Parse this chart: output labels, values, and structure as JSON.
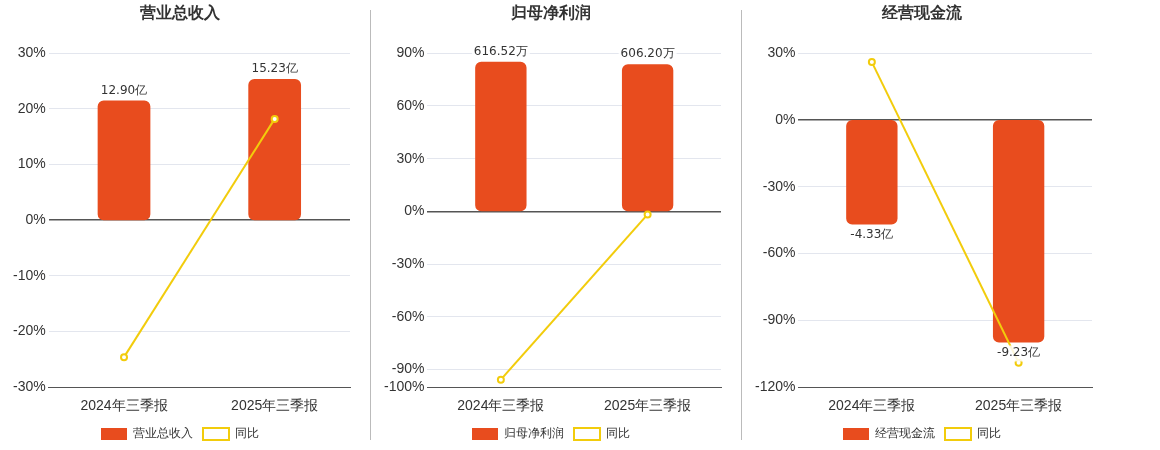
{
  "chart_data": [
    {
      "type": "bar",
      "title": "营业总收入",
      "categories": [
        "2024年三季报",
        "2025年三季报"
      ],
      "series": [
        {
          "name": "营业总收入",
          "axis": "y2",
          "color": "#e84c1e",
          "values": [
            12.9,
            15.23
          ],
          "value_labels": [
            "12.90亿",
            "15.23亿"
          ]
        },
        {
          "name": "同比",
          "type": "line",
          "color": "#f2cc0c",
          "values": [
            -24.6,
            18.2
          ]
        }
      ],
      "ylim": [
        -30,
        30
      ],
      "yticks": [
        {
          "value": -30,
          "label": "-30%"
        },
        {
          "value": -20,
          "label": "-20%"
        },
        {
          "value": -10,
          "label": "-10%"
        },
        {
          "value": 0,
          "label": "0%"
        },
        {
          "value": 10,
          "label": "10%"
        },
        {
          "value": 20,
          "label": "20%"
        },
        {
          "value": 30,
          "label": "30%"
        }
      ],
      "y2lim": [
        -18,
        18
      ],
      "grid": "y",
      "legend": "bottom",
      "marker": "circle"
    },
    {
      "type": "bar",
      "title": "归母净利润",
      "categories": [
        "2024年三季报",
        "2025年三季报"
      ],
      "series": [
        {
          "name": "归母净利润",
          "axis": "y2",
          "color": "#e84c1e",
          "values": [
            616.52,
            606.2
          ],
          "value_labels": [
            "616.52万",
            "606.20万"
          ]
        },
        {
          "name": "同比",
          "type": "line",
          "color": "#f2cc0c",
          "values": [
            -95.7,
            -1.7
          ]
        }
      ],
      "ylim": [
        -100,
        90
      ],
      "yticks": [
        {
          "value": -100,
          "label": "-100%"
        },
        {
          "value": -90,
          "label": "-90%"
        },
        {
          "value": -60,
          "label": "-60%"
        },
        {
          "value": -30,
          "label": "-30%"
        },
        {
          "value": 0,
          "label": "0%"
        },
        {
          "value": 30,
          "label": "30%"
        },
        {
          "value": 60,
          "label": "60%"
        },
        {
          "value": 90,
          "label": "90%"
        }
      ],
      "y2lim": [
        -725,
        652
      ],
      "grid": "y",
      "legend": "bottom",
      "marker": "circle"
    },
    {
      "type": "bar",
      "title": "经营现金流",
      "categories": [
        "2024年三季报",
        "2025年三季报"
      ],
      "series": [
        {
          "name": "经营现金流",
          "axis": "y2",
          "color": "#e84c1e",
          "values": [
            -4.33,
            -9.23
          ],
          "value_labels": [
            "-4.33亿",
            "-9.23亿"
          ]
        },
        {
          "name": "同比",
          "type": "line",
          "color": "#f2cc0c",
          "values": [
            26,
            -109
          ]
        }
      ],
      "ylim": [
        -120,
        30
      ],
      "yticks": [
        {
          "value": -120,
          "label": "-120%"
        },
        {
          "value": -90,
          "label": "-90%"
        },
        {
          "value": -60,
          "label": "-60%"
        },
        {
          "value": -30,
          "label": "-30%"
        },
        {
          "value": 0,
          "label": "0%"
        },
        {
          "value": 30,
          "label": "30%"
        }
      ],
      "y2lim": [
        -11.08,
        2.77
      ],
      "grid": "y",
      "legend": "bottom",
      "marker": "circle"
    }
  ]
}
